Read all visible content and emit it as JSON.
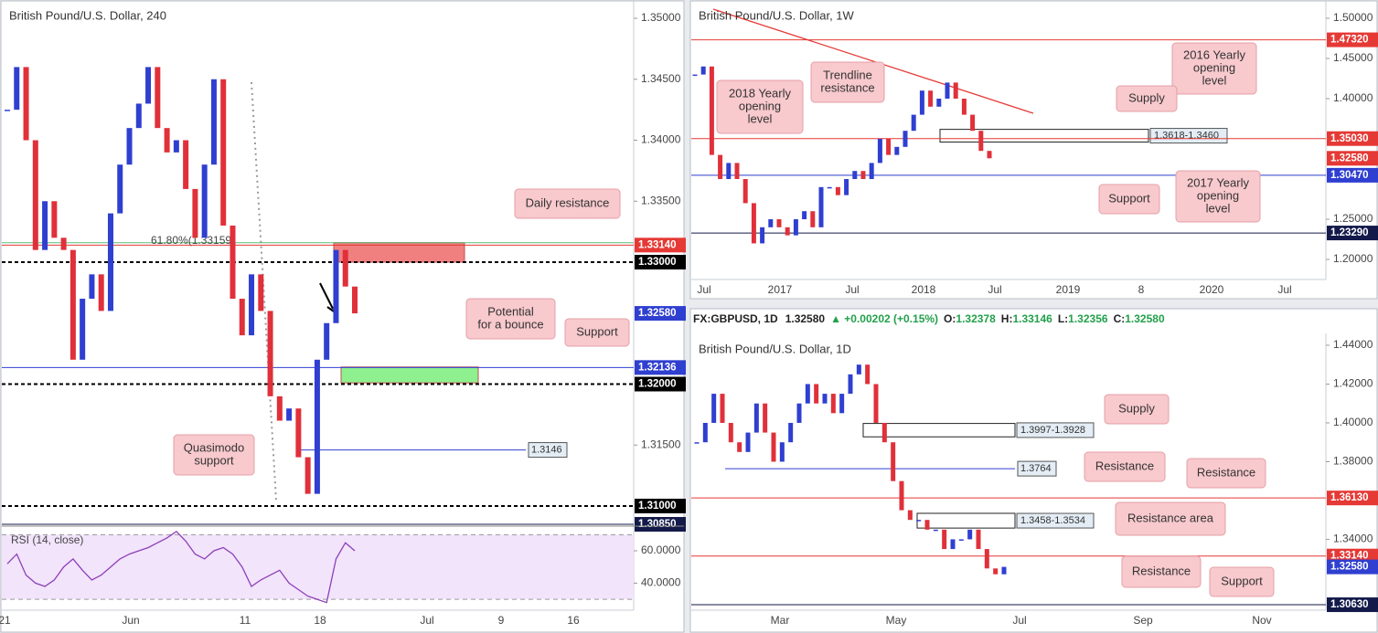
{
  "chart_data": [
    {
      "type": "candlestick",
      "title": "British Pound/U.S. Dollar, 240",
      "up_color": "#2f3fd0",
      "down_color": "#e0303a",
      "ylim": [
        1.3088,
        1.3515
      ],
      "yticks": [
        {
          "value": 1.35,
          "label": "1.35000"
        },
        {
          "value": 1.345,
          "label": "1.34500"
        },
        {
          "value": 1.34,
          "label": "1.34000"
        },
        {
          "value": 1.335,
          "label": "1.33500"
        },
        {
          "value": 1.315,
          "label": "1.31500"
        }
      ],
      "x_labels": [
        "21",
        "Jun",
        "11",
        "18",
        "Jul",
        "9",
        "16"
      ],
      "values": [
        1.3425,
        1.346,
        1.34,
        1.331,
        1.335,
        1.332,
        1.331,
        1.322,
        1.327,
        1.329,
        1.326,
        1.334,
        1.338,
        1.341,
        1.343,
        1.346,
        1.341,
        1.339,
        1.34,
        1.336,
        1.332,
        1.338,
        1.345,
        1.333,
        1.327,
        1.324,
        1.329,
        1.326,
        1.319,
        1.317,
        1.318,
        1.314,
        1.311,
        1.322,
        1.325,
        1.331,
        1.328,
        1.3258
      ],
      "levels": [
        {
          "value": 1.3314,
          "label": "1.33140",
          "color": "#e53935",
          "style": "solid"
        },
        {
          "value": 1.33,
          "label": "1.33000",
          "color": "#000000",
          "style": "dashed"
        },
        {
          "value": 1.3258,
          "label": "1.32580",
          "color": "#2f3fd0",
          "style": "none"
        },
        {
          "value": 1.32136,
          "label": "1.32136",
          "color": "#2f3fd0",
          "style": "solid"
        },
        {
          "value": 1.32,
          "label": "1.32000",
          "color": "#000000",
          "style": "dashed"
        },
        {
          "value": 1.31,
          "label": "1.31000",
          "color": "#000000",
          "style": "dashed"
        },
        {
          "value": 1.3085,
          "label": "1.30850",
          "color": "#131a4a",
          "style": "solid"
        }
      ],
      "zones": [
        {
          "top": 1.3316,
          "bottom": 1.33,
          "color": "#f08080"
        },
        {
          "top": 1.3214,
          "bottom": 1.3201,
          "color": "#8ef08e"
        }
      ],
      "marked_lines": [
        {
          "value": 1.3146,
          "label": "1.3146",
          "color": "#2f3fd0"
        }
      ],
      "fib": {
        "value": 1.33159,
        "label": "61.80%(1.33159)",
        "color": "#5cbf7a"
      },
      "notes": [
        {
          "text": [
            "Daily resistance"
          ]
        },
        {
          "text": [
            "Potential",
            "for a bounce"
          ]
        },
        {
          "text": [
            "Support"
          ]
        },
        {
          "text": [
            "Quasimodo",
            "support"
          ]
        }
      ],
      "indicator": {
        "title": "RSI (14, close)",
        "color": "#8e3fb8",
        "ylim": [
          25,
          73
        ],
        "bands": [
          70,
          30
        ],
        "yticks": [
          {
            "value": 60,
            "label": "60.0000"
          },
          {
            "value": 40,
            "label": "40.0000"
          }
        ],
        "values": [
          52,
          58,
          45,
          40,
          38,
          42,
          50,
          55,
          48,
          42,
          45,
          50,
          55,
          58,
          60,
          62,
          65,
          68,
          72,
          66,
          58,
          55,
          60,
          62,
          58,
          50,
          38,
          42,
          45,
          48,
          40,
          36,
          32,
          30,
          28,
          55,
          65,
          60
        ]
      }
    },
    {
      "type": "candlestick",
      "title": "British Pound/U.S. Dollar, 1W",
      "up_color": "#2f3fd0",
      "down_color": "#e0303a",
      "ylim": [
        1.1739,
        1.5227
      ],
      "yticks": [
        {
          "value": 1.5,
          "label": "1.50000"
        },
        {
          "value": 1.45,
          "label": "1.45000"
        },
        {
          "value": 1.4,
          "label": "1.40000"
        },
        {
          "value": 1.25,
          "label": "1.25000"
        },
        {
          "value": 1.2,
          "label": "1.20000"
        }
      ],
      "x_labels": [
        "Jul",
        "2017",
        "Jul",
        "2018",
        "Jul",
        "2019",
        "8",
        "2020",
        "Jul"
      ],
      "values": [
        1.43,
        1.44,
        1.33,
        1.3,
        1.32,
        1.3,
        1.27,
        1.22,
        1.24,
        1.25,
        1.24,
        1.23,
        1.25,
        1.26,
        1.24,
        1.29,
        1.29,
        1.28,
        1.3,
        1.31,
        1.3,
        1.32,
        1.35,
        1.33,
        1.34,
        1.36,
        1.38,
        1.41,
        1.39,
        1.4,
        1.42,
        1.4,
        1.38,
        1.36,
        1.335,
        1.3258
      ],
      "levels": [
        {
          "value": 1.4732,
          "label": "1.47320",
          "color": "#e53935",
          "style": "solid"
        },
        {
          "value": 1.3503,
          "label": "1.35030",
          "color": "#e53935",
          "style": "solid"
        },
        {
          "value": 1.3258,
          "label": "1.32580",
          "color": "#e53935",
          "style": "none"
        },
        {
          "value": 1.3047,
          "label": "1.30470",
          "color": "#2f3fd0",
          "style": "solid"
        },
        {
          "value": 1.2329,
          "label": "1.23290",
          "color": "#131a4a",
          "style": "solid"
        }
      ],
      "zones": [
        {
          "top": 1.3618,
          "bottom": 1.346,
          "color": "none",
          "label": "1.3618-1.3460"
        }
      ],
      "notes": [
        {
          "text": [
            "Trendline",
            "resistance"
          ]
        },
        {
          "text": [
            "2018 Yearly",
            "opening",
            "level"
          ]
        },
        {
          "text": [
            "2016 Yearly",
            "opening",
            "level"
          ]
        },
        {
          "text": [
            "Supply"
          ]
        },
        {
          "text": [
            "Support"
          ]
        },
        {
          "text": [
            "2017 Yearly",
            "opening",
            "level"
          ]
        }
      ]
    },
    {
      "type": "candlestick",
      "title": "British Pound/U.S. Dollar, 1D",
      "header": {
        "symbol": "FX:GBPUSD, 1D",
        "last": "1.32580",
        "change": "▲ +0.00202 (+0.15%)",
        "ohlc": [
          {
            "label": "O:",
            "value": "1.32378"
          },
          {
            "label": "H:",
            "value": "1.33146"
          },
          {
            "label": "L:",
            "value": "1.32356"
          },
          {
            "label": "C:",
            "value": "1.32580"
          }
        ]
      },
      "up_color": "#2f3fd0",
      "down_color": "#e0303a",
      "ylim": [
        1.3035,
        1.4461
      ],
      "yticks": [
        {
          "value": 1.44,
          "label": "1.44000"
        },
        {
          "value": 1.42,
          "label": "1.42000"
        },
        {
          "value": 1.4,
          "label": "1.40000"
        },
        {
          "value": 1.38,
          "label": "1.38000"
        },
        {
          "value": 1.34,
          "label": "1.34000"
        }
      ],
      "x_labels": [
        "Mar",
        "May",
        "Jul",
        "Sep",
        "Nov"
      ],
      "values": [
        1.39,
        1.4,
        1.415,
        1.4,
        1.39,
        1.385,
        1.395,
        1.41,
        1.395,
        1.38,
        1.39,
        1.4,
        1.41,
        1.42,
        1.41,
        1.415,
        1.405,
        1.415,
        1.425,
        1.43,
        1.42,
        1.4,
        1.39,
        1.37,
        1.355,
        1.35,
        1.35,
        1.345,
        1.345,
        1.335,
        1.34,
        1.34,
        1.345,
        1.335,
        1.325,
        1.322,
        1.3258
      ],
      "levels": [
        {
          "value": 1.3613,
          "label": "1.36130",
          "color": "#e53935",
          "style": "solid"
        },
        {
          "value": 1.3314,
          "label": "1.33140",
          "color": "#e53935",
          "style": "solid"
        },
        {
          "value": 1.3258,
          "label": "1.32580",
          "color": "#2f3fd0",
          "style": "none"
        },
        {
          "value": 1.3063,
          "label": "1.30630",
          "color": "#131a4a",
          "style": "solid"
        }
      ],
      "zones": [
        {
          "top": 1.3997,
          "bottom": 1.3928,
          "color": "none",
          "label": "1.3997-1.3928"
        },
        {
          "top": 1.3534,
          "bottom": 1.3458,
          "color": "none",
          "label": "1.3458-1.3534"
        }
      ],
      "marked_lines": [
        {
          "value": 1.3764,
          "label": "1.3764",
          "color": "#2f3fd0"
        }
      ],
      "notes": [
        {
          "text": [
            "Supply"
          ]
        },
        {
          "text": [
            "Resistance"
          ]
        },
        {
          "text": [
            "Resistance"
          ]
        },
        {
          "text": [
            "Resistance area"
          ]
        },
        {
          "text": [
            "Resistance"
          ]
        },
        {
          "text": [
            "Support"
          ]
        }
      ]
    }
  ]
}
